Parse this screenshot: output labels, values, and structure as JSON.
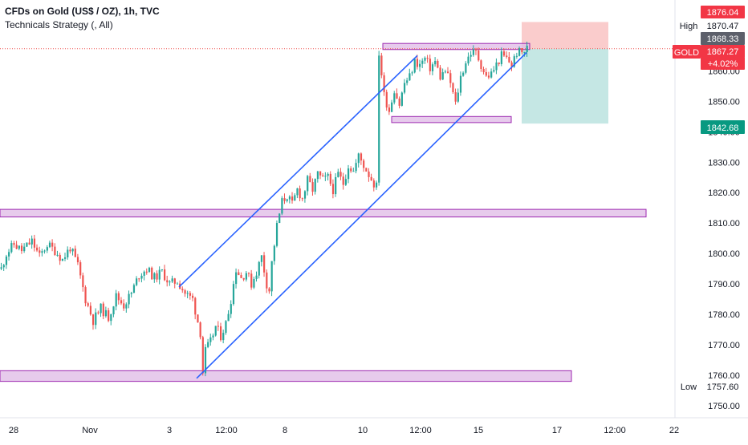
{
  "header": {
    "title": "CFDs on Gold (US$ / OZ), 1h, TVC",
    "subtitle": "Technicals Strategy (, All)"
  },
  "colors": {
    "up": "#26a69a",
    "down": "#ef5350",
    "zone_fill": "#e1bee7",
    "zone_border": "#9c27b0",
    "channel": "#2962ff",
    "stop_zone": "#f8bbbb",
    "target_zone": "#b2dfdb",
    "price_line": "#ef5350",
    "tag_red": "#f23645",
    "tag_gray": "#5d606b",
    "tag_green": "#089981"
  },
  "chart_data": {
    "type": "candlestick",
    "title": "CFDs on Gold (US$ / OZ), 1h, TVC",
    "indicator": "Technicals Strategy (, All)",
    "x_ticks": [
      "28",
      "Nov",
      "3",
      "12:00",
      "8",
      "10",
      "12:00",
      "15",
      "17",
      "12:00",
      "22"
    ],
    "ylim": [
      1745,
      1877
    ],
    "y_ticks": [
      1750,
      1760,
      1770,
      1780,
      1790,
      1800,
      1810,
      1820,
      1830,
      1840,
      1850,
      1860,
      1870
    ],
    "y_tick_labels": [
      "1750.00",
      "1760.00",
      "1770.00",
      "1780.00",
      "1790.00",
      "1800.00",
      "1810.00",
      "1820.00",
      "1830.00",
      "1840.00",
      "1850.00",
      "1860.00",
      "1870.00"
    ],
    "price_path": [
      [
        0,
        1795
      ],
      [
        2,
        1800
      ],
      [
        5,
        1803
      ],
      [
        8,
        1801
      ],
      [
        12,
        1804
      ],
      [
        15,
        1799
      ],
      [
        18,
        1803
      ],
      [
        21,
        1801
      ],
      [
        24,
        1798
      ],
      [
        27,
        1802
      ],
      [
        30,
        1796
      ],
      [
        33,
        1785
      ],
      [
        36,
        1778
      ],
      [
        39,
        1782
      ],
      [
        42,
        1779
      ],
      [
        45,
        1786
      ],
      [
        48,
        1783
      ],
      [
        51,
        1787
      ],
      [
        54,
        1793
      ],
      [
        57,
        1795
      ],
      [
        60,
        1792
      ],
      [
        63,
        1794
      ],
      [
        66,
        1790
      ],
      [
        69,
        1791
      ],
      [
        72,
        1787
      ],
      [
        75,
        1785
      ],
      [
        78,
        1774
      ],
      [
        79,
        1761
      ],
      [
        80,
        1768
      ],
      [
        82,
        1771
      ],
      [
        84,
        1776
      ],
      [
        86,
        1773
      ],
      [
        88,
        1777
      ],
      [
        90,
        1785
      ],
      [
        92,
        1795
      ],
      [
        94,
        1792
      ],
      [
        96,
        1794
      ],
      [
        98,
        1790
      ],
      [
        100,
        1794
      ],
      [
        102,
        1799
      ],
      [
        104,
        1790
      ],
      [
        105,
        1788
      ],
      [
        106,
        1797
      ],
      [
        108,
        1809
      ],
      [
        110,
        1817
      ],
      [
        112,
        1819
      ],
      [
        114,
        1816
      ],
      [
        116,
        1821
      ],
      [
        118,
        1818
      ],
      [
        120,
        1824
      ],
      [
        122,
        1821
      ],
      [
        124,
        1826
      ],
      [
        126,
        1824
      ],
      [
        128,
        1825
      ],
      [
        130,
        1821
      ],
      [
        132,
        1826
      ],
      [
        134,
        1823
      ],
      [
        136,
        1829
      ],
      [
        138,
        1827
      ],
      [
        140,
        1832
      ],
      [
        142,
        1829
      ],
      [
        144,
        1826
      ],
      [
        146,
        1823
      ],
      [
        147,
        1822
      ],
      [
        148,
        1866
      ],
      [
        150,
        1852
      ],
      [
        152,
        1847
      ],
      [
        154,
        1854
      ],
      [
        156,
        1849
      ],
      [
        158,
        1856
      ],
      [
        160,
        1858
      ],
      [
        162,
        1863
      ],
      [
        164,
        1862
      ],
      [
        166,
        1864
      ],
      [
        168,
        1861
      ],
      [
        170,
        1863
      ],
      [
        172,
        1858
      ],
      [
        174,
        1860
      ],
      [
        176,
        1856
      ],
      [
        178,
        1849
      ],
      [
        180,
        1858
      ],
      [
        182,
        1863
      ],
      [
        184,
        1866
      ],
      [
        186,
        1866
      ],
      [
        188,
        1862
      ],
      [
        190,
        1858
      ],
      [
        192,
        1859
      ],
      [
        194,
        1862
      ],
      [
        196,
        1865
      ],
      [
        198,
        1864
      ],
      [
        200,
        1862
      ],
      [
        202,
        1866
      ],
      [
        204,
        1866
      ],
      [
        206,
        1867.27
      ]
    ],
    "channel": {
      "upper": [
        [
          1789,
          1821
        ],
        [
          1865,
          1860
        ]
      ],
      "lower": [
        [
          1759,
          1822
        ],
        [
          1821,
          1848
        ],
        [
          1866,
          1859
        ]
      ]
    },
    "zones": [
      {
        "ymin": 1812,
        "ymax": 1814.5,
        "extends": "right"
      },
      {
        "ymin": 1758,
        "ymax": 1761.5,
        "extends": "right"
      },
      {
        "ymin": 1843,
        "ymax": 1845,
        "extends": "none"
      },
      {
        "ymin": 1867,
        "ymax": 1869,
        "extends": "none"
      }
    ],
    "position": {
      "entry": 1867.27,
      "stop": 1876.04,
      "target": 1842.68
    },
    "last_price": 1867.27,
    "change_pct": "+4.02%",
    "high": 1870.47,
    "low": 1757.6,
    "labels": {
      "symbol": "GOLD",
      "last": "1867.27",
      "change": "+4.02%",
      "stop": "1876.04",
      "high_label": "High",
      "high_value": "1870.47",
      "crosshair": "1868.33",
      "target": "1842.68",
      "low_label": "Low",
      "low_value": "1757.60"
    }
  }
}
